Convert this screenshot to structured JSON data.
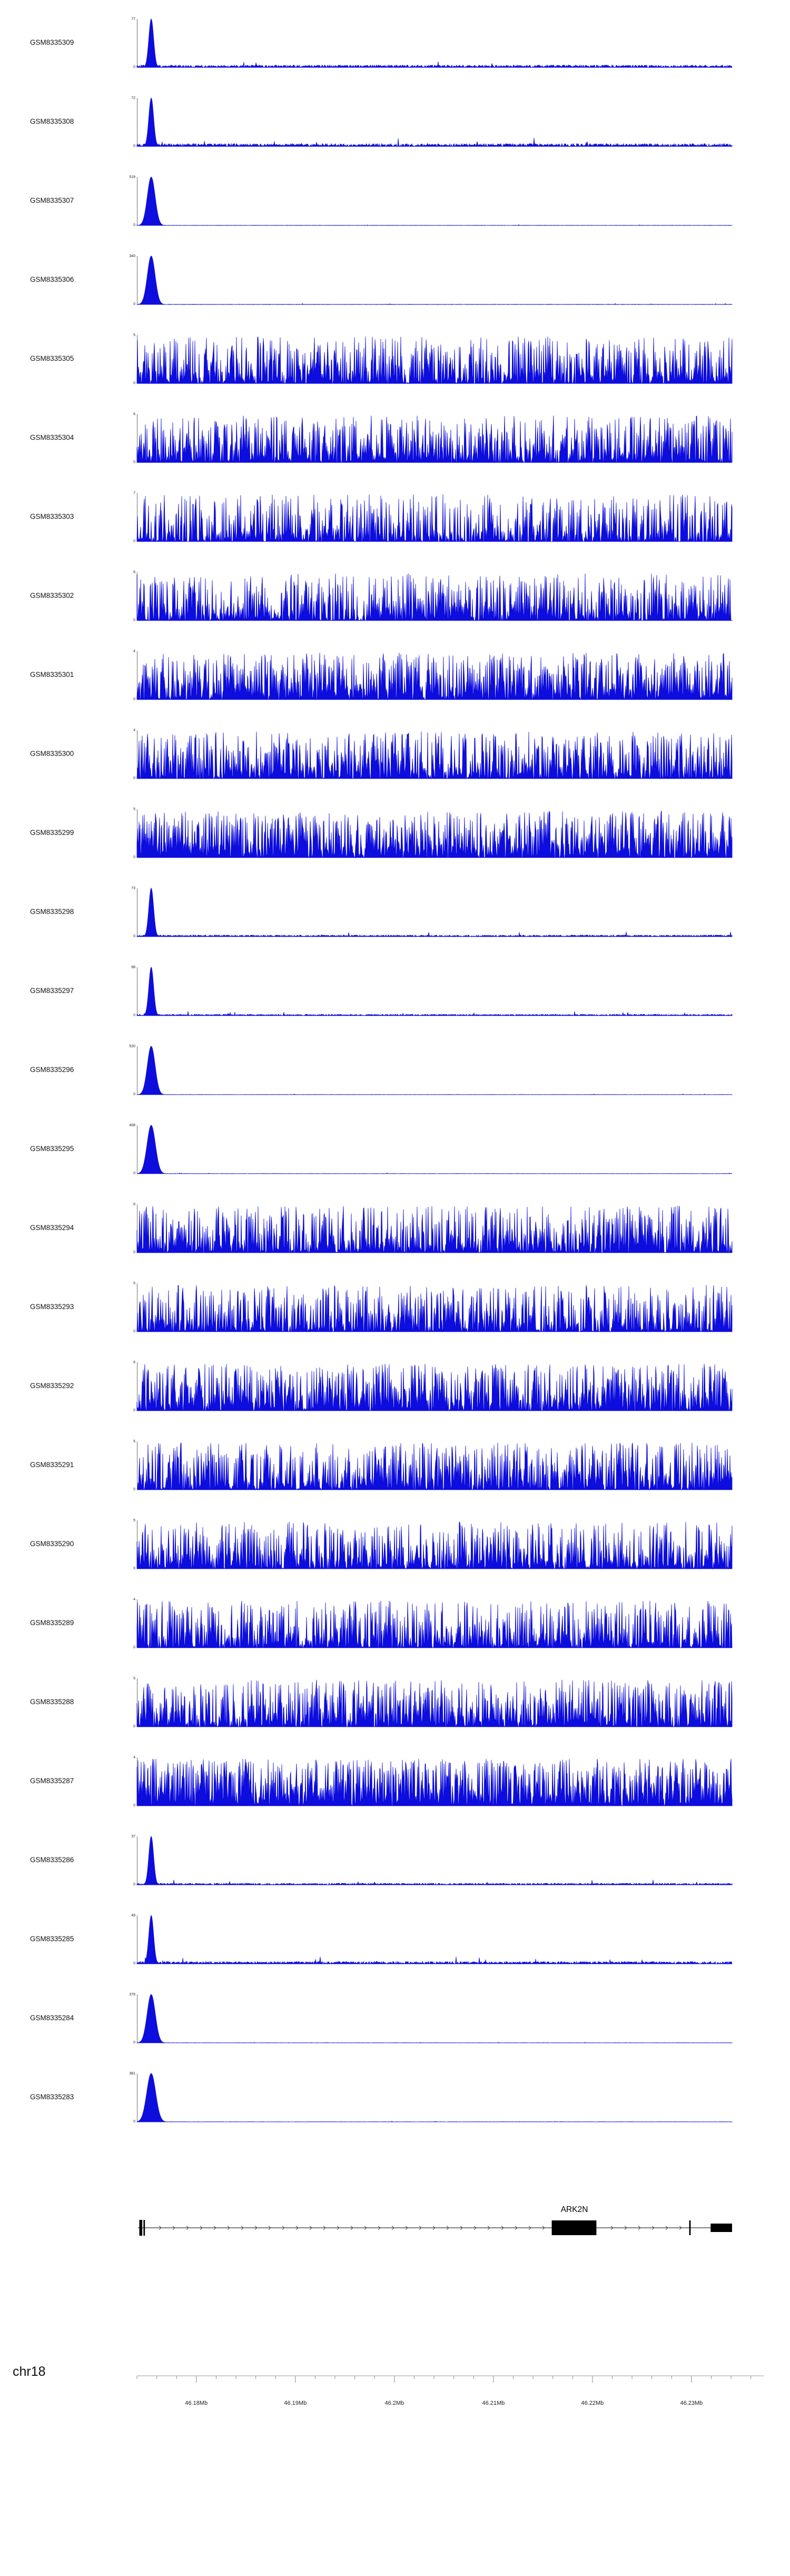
{
  "page": {
    "background": "#ffffff"
  },
  "chart_data": {
    "type": "area",
    "description": "Genome browser coverage signal tracks (GEO samples) over chr18 46.174-46.234 Mb with ARK2N gene model and coordinate ruler",
    "signal_color": "#0d0ddd",
    "axis_color": "#333333",
    "chromosome": "chr18",
    "x_range_mb": [
      46.174,
      46.2341
    ],
    "minor_tick_step_mb": 0.002,
    "x_ticks": [
      {
        "mb": 46.18,
        "label": "46.18Mb"
      },
      {
        "mb": 46.19,
        "label": "46.19Mb"
      },
      {
        "mb": 46.2,
        "label": "46.2Mb"
      },
      {
        "mb": 46.21,
        "label": "46.21Mb"
      },
      {
        "mb": 46.22,
        "label": "46.22Mb"
      },
      {
        "mb": 46.23,
        "label": "46.23Mb"
      }
    ],
    "tracks": [
      {
        "name": "GSM8335309",
        "ymax": "77",
        "ymin": "0",
        "pattern": "promoter_peak",
        "background": 0.05,
        "peak_w": 0.004,
        "seed": 101
      },
      {
        "name": "GSM8335308",
        "ymax": "72",
        "ymin": "0",
        "pattern": "promoter_peak",
        "background": 0.06,
        "peak_w": 0.004,
        "seed": 102
      },
      {
        "name": "GSM8335307",
        "ymax": "519",
        "ymin": "0",
        "pattern": "promoter_peak",
        "background": 0.006,
        "peak_w": 0.0065,
        "seed": 103
      },
      {
        "name": "GSM8335306",
        "ymax": "340",
        "ymin": "0",
        "pattern": "promoter_peak",
        "background": 0.007,
        "peak_w": 0.0065,
        "seed": 104
      },
      {
        "name": "GSM8335305",
        "ymax": "5",
        "ymin": "0",
        "pattern": "broad_signal",
        "power": 2.4,
        "seed": 105
      },
      {
        "name": "GSM8335304",
        "ymax": "6",
        "ymin": "0",
        "pattern": "broad_signal",
        "power": 2.2,
        "seed": 106
      },
      {
        "name": "GSM8335303",
        "ymax": "7",
        "ymin": "0",
        "pattern": "broad_signal",
        "power": 3.1,
        "seed": 107
      },
      {
        "name": "GSM8335302",
        "ymax": "6",
        "ymin": "0",
        "pattern": "broad_signal",
        "power": 2.5,
        "seed": 108
      },
      {
        "name": "GSM8335301",
        "ymax": "4",
        "ymin": "0",
        "pattern": "broad_signal",
        "power": 2.2,
        "seed": 109
      },
      {
        "name": "GSM8335300",
        "ymax": "4",
        "ymin": "0",
        "pattern": "broad_signal",
        "power": 2.4,
        "seed": 110
      },
      {
        "name": "GSM8335299",
        "ymax": "5",
        "ymin": "0",
        "pattern": "broad_signal",
        "power": 2.0,
        "seed": 111
      },
      {
        "name": "GSM8335298",
        "ymax": "73",
        "ymin": "0",
        "pattern": "promoter_peak",
        "background": 0.035,
        "peak_w": 0.004,
        "seed": 112
      },
      {
        "name": "GSM8335297",
        "ymax": "98",
        "ymin": "0",
        "pattern": "promoter_peak",
        "background": 0.03,
        "peak_w": 0.004,
        "seed": 113
      },
      {
        "name": "GSM8335296",
        "ymax": "520",
        "ymin": "0",
        "pattern": "promoter_peak",
        "background": 0.005,
        "peak_w": 0.0065,
        "seed": 114
      },
      {
        "name": "GSM8335295",
        "ymax": "408",
        "ymin": "0",
        "pattern": "promoter_peak",
        "background": 0.005,
        "peak_w": 0.007,
        "seed": 115
      },
      {
        "name": "GSM8335294",
        "ymax": "6",
        "ymin": "0",
        "pattern": "broad_signal",
        "power": 2.4,
        "seed": 116
      },
      {
        "name": "GSM8335293",
        "ymax": "5",
        "ymin": "0",
        "pattern": "broad_signal",
        "power": 2.6,
        "seed": 117
      },
      {
        "name": "GSM8335292",
        "ymax": "6",
        "ymin": "0",
        "pattern": "broad_signal",
        "power": 2.0,
        "seed": 118
      },
      {
        "name": "GSM8335291",
        "ymax": "5",
        "ymin": "0",
        "pattern": "broad_signal",
        "power": 2.3,
        "seed": 119
      },
      {
        "name": "GSM8335290",
        "ymax": "5",
        "ymin": "0",
        "pattern": "broad_signal",
        "power": 2.4,
        "seed": 120
      },
      {
        "name": "GSM8335289",
        "ymax": "4",
        "ymin": "0",
        "pattern": "broad_signal",
        "power": 2.5,
        "seed": 121
      },
      {
        "name": "GSM8335288",
        "ymax": "5",
        "ymin": "0",
        "pattern": "broad_signal",
        "power": 2.2,
        "seed": 122
      },
      {
        "name": "GSM8335287",
        "ymax": "4",
        "ymin": "0",
        "pattern": "broad_signal",
        "power": 1.7,
        "seed": 123
      },
      {
        "name": "GSM8335286",
        "ymax": "37",
        "ymin": "0",
        "pattern": "promoter_peak",
        "background": 0.035,
        "peak_w": 0.004,
        "seed": 124
      },
      {
        "name": "GSM8335285",
        "ymax": "49",
        "ymin": "0",
        "pattern": "promoter_peak",
        "background": 0.05,
        "peak_w": 0.004,
        "seed": 125
      },
      {
        "name": "GSM8335284",
        "ymax": "379",
        "ymin": "0",
        "pattern": "promoter_peak",
        "background": 0.005,
        "peak_w": 0.0068,
        "seed": 126
      },
      {
        "name": "GSM8335283",
        "ymax": "381",
        "ymin": "0",
        "pattern": "promoter_peak",
        "background": 0.005,
        "peak_w": 0.0075,
        "seed": 127
      }
    ],
    "gene_track": {
      "gene": "ARK2N",
      "strand": "+",
      "label_x_frac": 0.735,
      "exons": [
        {
          "start": 0.004,
          "end": 0.009,
          "height": 30
        },
        {
          "start": 0.011,
          "end": 0.0135,
          "height": 30
        },
        {
          "start": 0.697,
          "end": 0.772,
          "height": 28
        },
        {
          "start": 0.928,
          "end": 0.9305,
          "height": 28
        },
        {
          "start": 0.964,
          "end": 1.0,
          "height": 16
        }
      ]
    },
    "ruler": {
      "chromosome_label": "chr18"
    }
  }
}
